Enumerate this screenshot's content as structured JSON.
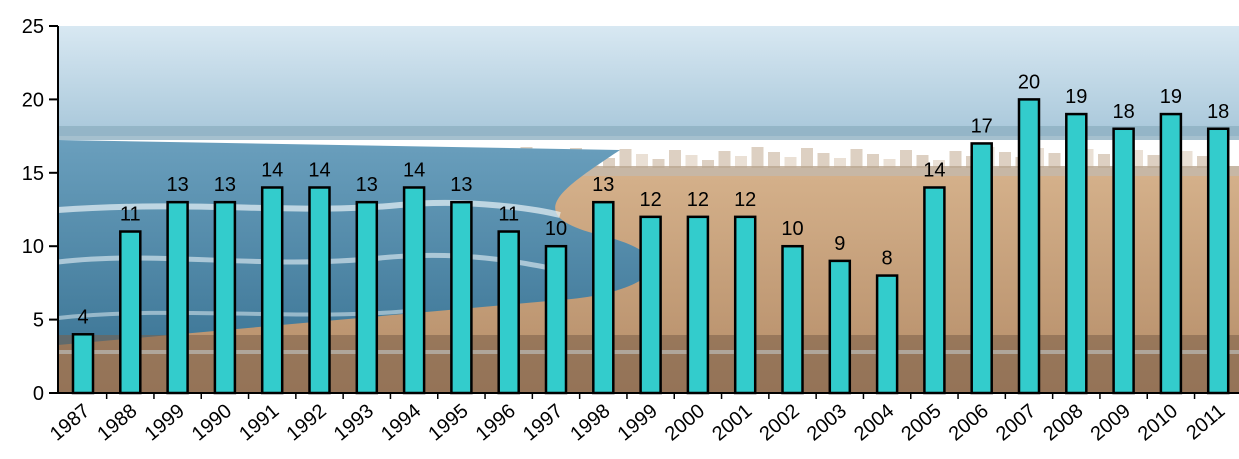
{
  "chart_data": {
    "type": "bar",
    "title": "",
    "xlabel": "",
    "ylabel": "",
    "categories": [
      "1987",
      "1988",
      "1999",
      "1990",
      "1991",
      "1992",
      "1993",
      "1994",
      "1995",
      "1996",
      "1997",
      "1998",
      "1999",
      "2000",
      "2001",
      "2002",
      "2003",
      "2004",
      "2005",
      "2006",
      "2007",
      "2008",
      "2009",
      "2010",
      "2011"
    ],
    "values": [
      4,
      11,
      13,
      13,
      14,
      14,
      13,
      14,
      13,
      11,
      10,
      13,
      12,
      12,
      12,
      10,
      9,
      8,
      14,
      17,
      20,
      19,
      18,
      19,
      18
    ],
    "data_labels": [
      "4",
      "11",
      "13",
      "13",
      "14",
      "14",
      "13",
      "14",
      "13",
      "11",
      "10",
      "13",
      "12",
      "12",
      "12",
      "10",
      "9",
      "8",
      "14",
      "17",
      "20",
      "19",
      "18",
      "19",
      "18"
    ],
    "ylim": [
      0,
      25
    ],
    "yticks": [
      "0",
      "5",
      "10",
      "15",
      "20",
      "25"
    ],
    "grid": false,
    "legend": "none",
    "colors": {
      "bar_fill": "#33cccc",
      "bar_stroke": "#000000",
      "sky_top": "#cfe3ef",
      "sky_bottom": "#a9c9dc",
      "sea": "#4a86a8",
      "sand": "#c9a27a",
      "sand_dark": "#8a6a50"
    },
    "background": "beach-photo"
  }
}
